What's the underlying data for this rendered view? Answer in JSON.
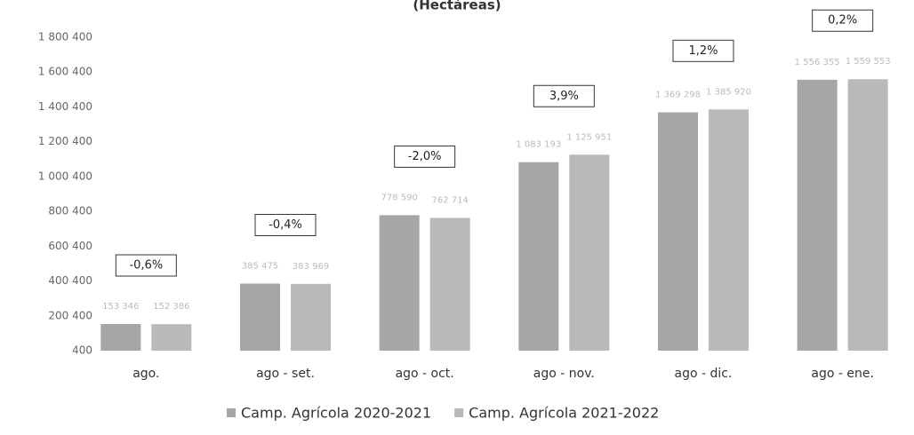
{
  "chart_data": {
    "type": "bar",
    "title": "(Hectáreas)",
    "categories": [
      "ago.",
      "ago - set.",
      "ago - oct.",
      "ago - nov.",
      "ago - dic.",
      "ago - ene."
    ],
    "series": [
      {
        "name": "Camp. Agrícola 2020-2021",
        "color": "#a6a6a6",
        "values": [
          153346,
          385475,
          778590,
          1083193,
          1369298,
          1556355
        ],
        "value_labels": [
          "153 346",
          "385 475",
          "778 590",
          "1 083 193",
          "1 369 298",
          "1 556 355"
        ]
      },
      {
        "name": "Camp. Agrícola 2021-2022",
        "color": "#b9b9b9",
        "values": [
          152386,
          383969,
          762714,
          1125951,
          1385920,
          1559553
        ],
        "value_labels": [
          "152 386",
          "383 969",
          "762 714",
          "1 125 951",
          "1 385 920",
          "1 559 553"
        ]
      }
    ],
    "annotations": [
      "-0,6%",
      "-0,4%",
      "-2,0%",
      "3,9%",
      "1,2%",
      "0,2%"
    ],
    "ylim": [
      400,
      1800400
    ],
    "yticks": [
      400,
      {
        "value": 200400,
        "label": "200 400"
      },
      {
        "value": 400400,
        "label": "400 400"
      },
      {
        "value": 600400,
        "label": "600 400"
      },
      {
        "value": 800400,
        "label": "800 400"
      },
      {
        "value": 1000400,
        "label": "1 000 400"
      },
      {
        "value": 1200400,
        "label": "1 200 400"
      },
      {
        "value": 1400400,
        "label": "1 400 400"
      },
      {
        "value": 1600400,
        "label": "1 600 400"
      },
      {
        "value": 1800400,
        "label": "1 800 400"
      }
    ],
    "grid": false,
    "legend": "bottom"
  }
}
